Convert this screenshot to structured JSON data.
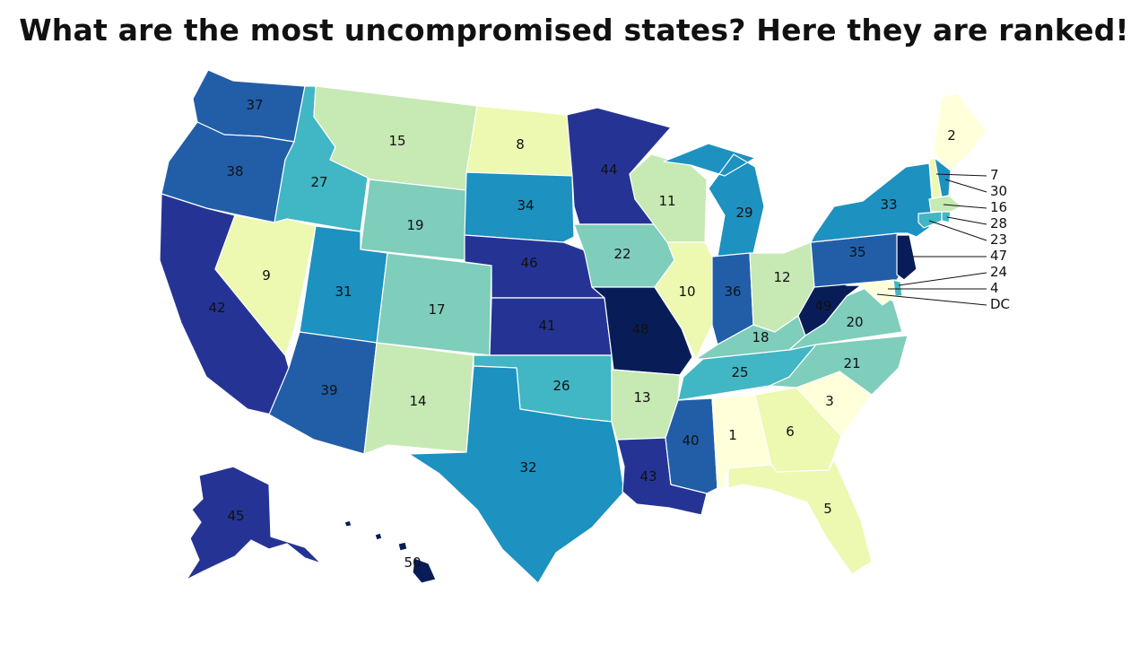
{
  "title": "What are the most uncompromised states? Here they are ranked!",
  "color_scale": [
    "#ffffd9",
    "#edf8b1",
    "#c7e9b4",
    "#7fcdbb",
    "#41b6c4",
    "#1d91c0",
    "#225ea8",
    "#253494",
    "#081d58"
  ],
  "states": [
    {
      "id": "WA",
      "rank": "37"
    },
    {
      "id": "OR",
      "rank": "38"
    },
    {
      "id": "CA",
      "rank": "42"
    },
    {
      "id": "ID",
      "rank": "27"
    },
    {
      "id": "NV",
      "rank": "9"
    },
    {
      "id": "MT",
      "rank": "15"
    },
    {
      "id": "WY",
      "rank": "19"
    },
    {
      "id": "UT",
      "rank": "31"
    },
    {
      "id": "AZ",
      "rank": "39"
    },
    {
      "id": "CO",
      "rank": "17"
    },
    {
      "id": "NM",
      "rank": "14"
    },
    {
      "id": "ND",
      "rank": "8"
    },
    {
      "id": "SD",
      "rank": "34"
    },
    {
      "id": "NE",
      "rank": "46"
    },
    {
      "id": "KS",
      "rank": "41"
    },
    {
      "id": "OK",
      "rank": "26"
    },
    {
      "id": "TX",
      "rank": "32"
    },
    {
      "id": "MN",
      "rank": "44"
    },
    {
      "id": "IA",
      "rank": "22"
    },
    {
      "id": "MO",
      "rank": "48"
    },
    {
      "id": "AR",
      "rank": "13"
    },
    {
      "id": "LA",
      "rank": "43"
    },
    {
      "id": "WI",
      "rank": "11"
    },
    {
      "id": "IL",
      "rank": "10"
    },
    {
      "id": "MI",
      "rank": "29"
    },
    {
      "id": "IN",
      "rank": "36"
    },
    {
      "id": "OH",
      "rank": "12"
    },
    {
      "id": "KY",
      "rank": "18"
    },
    {
      "id": "TN",
      "rank": "25"
    },
    {
      "id": "MS",
      "rank": "40"
    },
    {
      "id": "AL",
      "rank": "1"
    },
    {
      "id": "GA",
      "rank": "6"
    },
    {
      "id": "FL",
      "rank": "5"
    },
    {
      "id": "SC",
      "rank": "3"
    },
    {
      "id": "NC",
      "rank": "21"
    },
    {
      "id": "VA",
      "rank": "20"
    },
    {
      "id": "WV",
      "rank": "49"
    },
    {
      "id": "PA",
      "rank": "35"
    },
    {
      "id": "NY",
      "rank": "33"
    },
    {
      "id": "ME",
      "rank": "2"
    },
    {
      "id": "VT",
      "rank": "7"
    },
    {
      "id": "NH",
      "rank": "30"
    },
    {
      "id": "MA",
      "rank": "16"
    },
    {
      "id": "RI",
      "rank": "28"
    },
    {
      "id": "CT",
      "rank": "23"
    },
    {
      "id": "NJ",
      "rank": "47"
    },
    {
      "id": "DE",
      "rank": "24"
    },
    {
      "id": "MD",
      "rank": "4"
    },
    {
      "id": "DC",
      "rank": "DC"
    },
    {
      "id": "AK",
      "rank": "45"
    },
    {
      "id": "HI",
      "rank": "50"
    }
  ]
}
